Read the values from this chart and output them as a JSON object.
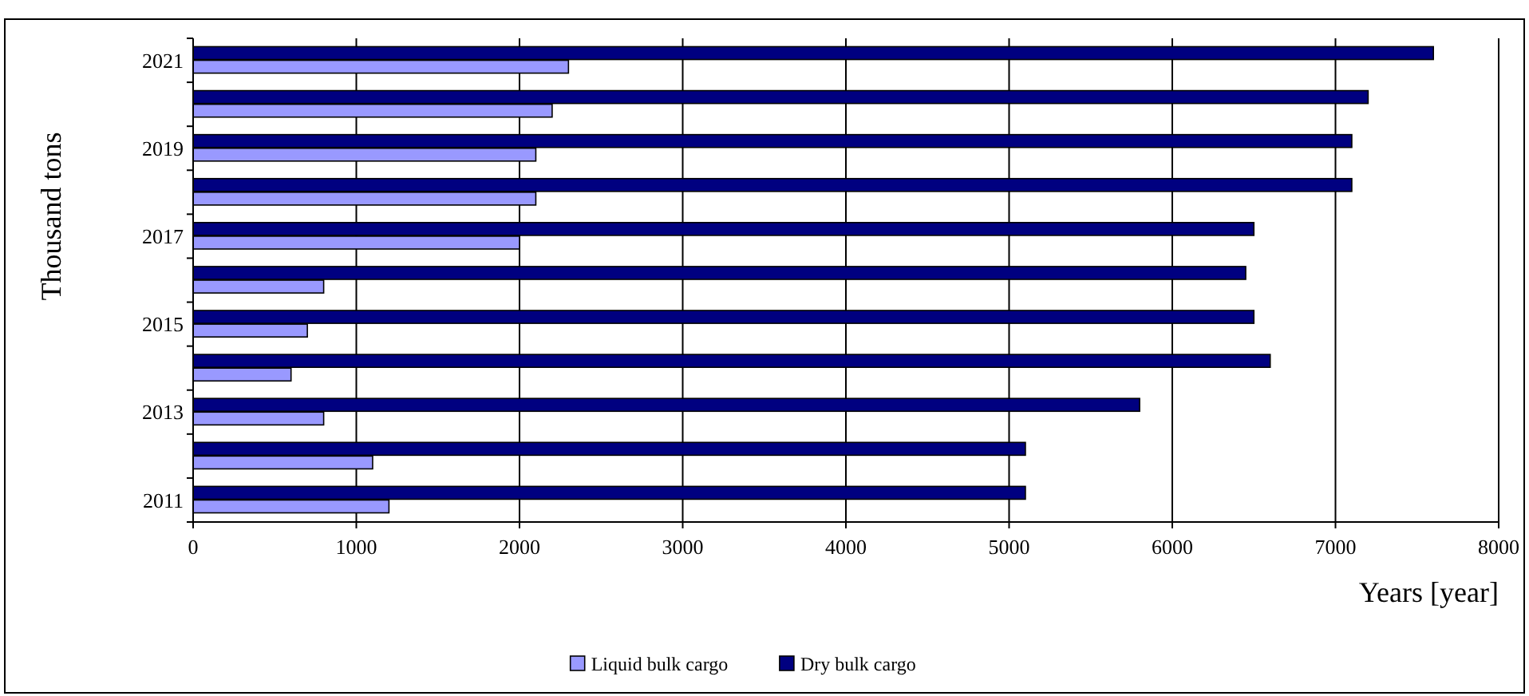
{
  "chart_data": {
    "type": "bar",
    "orientation": "horizontal",
    "xlabel": "Years [year]",
    "ylabel": "Thousand tons",
    "categories": [
      "2021",
      null,
      "2019",
      null,
      "2017",
      null,
      "2015",
      null,
      "2013",
      null,
      "2011"
    ],
    "series": [
      {
        "name": "Liquid bulk cargo",
        "color": "#9999ff",
        "values": [
          2300,
          2200,
          2100,
          2100,
          2000,
          800,
          700,
          600,
          800,
          1100,
          1200
        ]
      },
      {
        "name": "Dry bulk cargo",
        "color": "#000080",
        "values": [
          7600,
          7200,
          7100,
          7100,
          6500,
          6450,
          6500,
          6600,
          5800,
          5100,
          5100
        ]
      }
    ],
    "xlim": [
      0,
      8000
    ],
    "xticks": [
      0,
      1000,
      2000,
      3000,
      4000,
      5000,
      6000,
      7000,
      8000
    ],
    "grid": "x",
    "legend": "bottom"
  }
}
